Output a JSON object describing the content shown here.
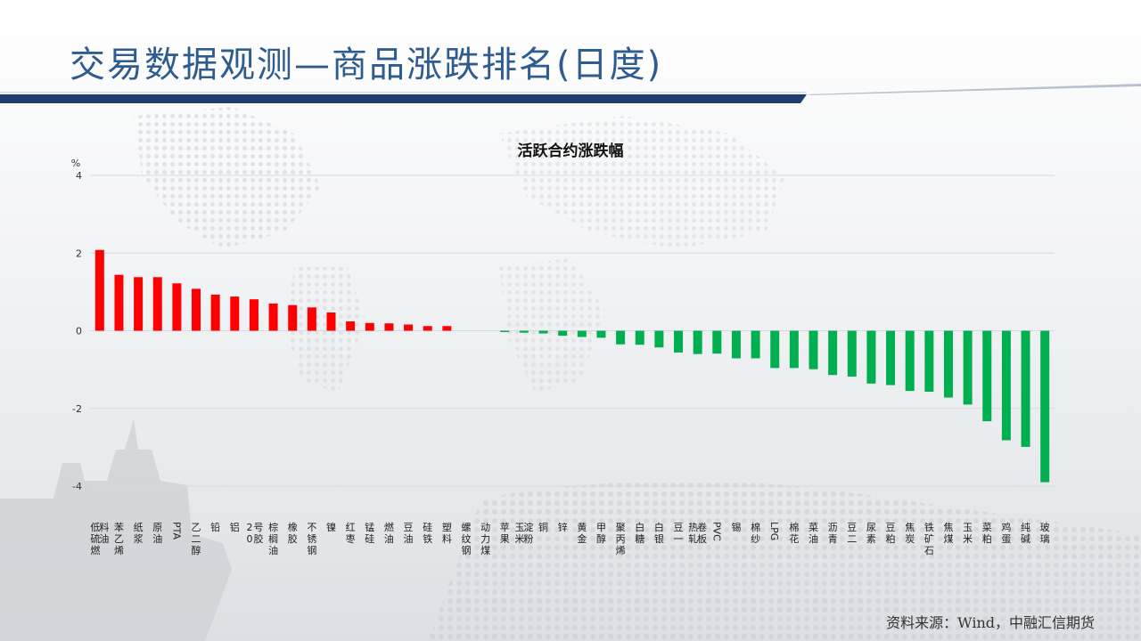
{
  "slide": {
    "title": "交易数据观测—商品涨跌排名(日度)",
    "source": "资料来源：Wind，中融汇信期货"
  },
  "colors": {
    "up": "#ff0000",
    "down": "#00b050",
    "title": "#2f5c8f",
    "band": "#1f3d6e"
  },
  "chart_data": {
    "type": "bar",
    "title": "活跃合约涨跌幅",
    "ylabel": "%",
    "xlabel": "",
    "ylim": [
      -4,
      4
    ],
    "yticks": [
      4,
      2,
      0,
      -2,
      -4
    ],
    "grid": true,
    "categories": [
      "低硫燃料油",
      "苯乙烯",
      "纸浆",
      "原油",
      "PTA",
      "乙二醇",
      "铅",
      "铝",
      "20号胶",
      "棕榈油",
      "橡胶",
      "不锈钢",
      "镍",
      "红枣",
      "锰硅",
      "燃油",
      "豆油",
      "硅铁",
      "塑料",
      "螺纹钢",
      "动力煤",
      "苹果",
      "玉米淀粉",
      "铜",
      "锌",
      "黄金",
      "甲醇",
      "聚丙烯",
      "白糖",
      "白银",
      "豆一",
      "热轧卷板",
      "PVC",
      "锡",
      "棉纱",
      "LPG",
      "棉花",
      "菜油",
      "沥青",
      "豆二",
      "尿素",
      "豆粕",
      "焦炭",
      "铁矿石",
      "焦煤",
      "玉米",
      "菜粕",
      "鸡蛋",
      "纯碱",
      "玻璃"
    ],
    "values": [
      2.08,
      1.44,
      1.38,
      1.38,
      1.22,
      1.08,
      0.93,
      0.88,
      0.81,
      0.7,
      0.66,
      0.6,
      0.47,
      0.24,
      0.2,
      0.19,
      0.16,
      0.12,
      0.12,
      0.0,
      0.0,
      -0.03,
      -0.05,
      -0.07,
      -0.13,
      -0.16,
      -0.18,
      -0.35,
      -0.36,
      -0.43,
      -0.56,
      -0.6,
      -0.59,
      -0.71,
      -0.71,
      -0.96,
      -0.96,
      -0.99,
      -1.14,
      -1.18,
      -1.36,
      -1.4,
      -1.55,
      -1.57,
      -1.72,
      -1.9,
      -2.33,
      -2.82,
      -2.99,
      -3.9
    ]
  }
}
